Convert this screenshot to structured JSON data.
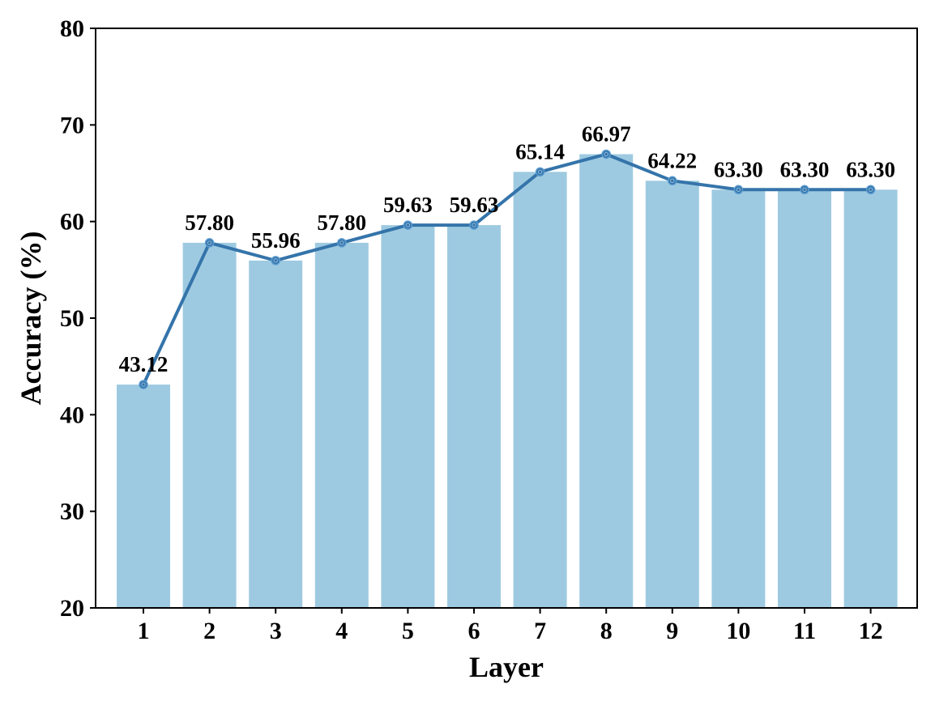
{
  "chart_data": {
    "type": "bar",
    "title": "",
    "xlabel": "Layer",
    "ylabel": "Accuracy (%)",
    "categories": [
      "1",
      "2",
      "3",
      "4",
      "5",
      "6",
      "7",
      "8",
      "9",
      "10",
      "11",
      "12"
    ],
    "values": [
      43.12,
      57.8,
      55.96,
      57.8,
      59.63,
      59.63,
      65.14,
      66.97,
      64.22,
      63.3,
      63.3,
      63.3
    ],
    "data_labels": [
      "43.12",
      "57.80",
      "55.96",
      "57.80",
      "59.63",
      "59.63",
      "65.14",
      "66.97",
      "64.22",
      "63.30",
      "63.30",
      "63.30"
    ],
    "overlay_line": {
      "type": "line",
      "marker": "circle",
      "values": [
        43.12,
        57.8,
        55.96,
        57.8,
        59.63,
        59.63,
        65.14,
        66.97,
        64.22,
        63.3,
        63.3,
        63.3
      ]
    },
    "ylim": [
      20,
      80
    ],
    "yticks": [
      20,
      30,
      40,
      50,
      60,
      70,
      80
    ],
    "grid": false,
    "legend": null,
    "colors": {
      "bar": "#9ecae1",
      "line": "#3474aa"
    }
  }
}
